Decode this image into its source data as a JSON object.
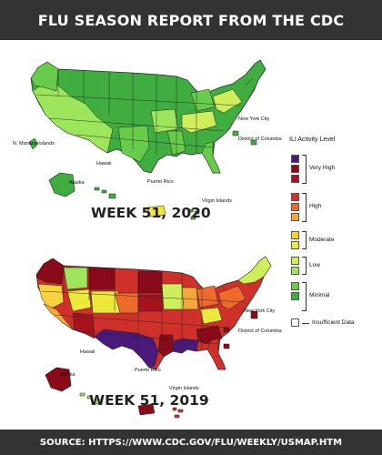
{
  "title": "FLU SEASON REPORT FROM THE CDC",
  "source": "SOURCE: HTTPS://WWW.CDC.GOV/FLU/WEEKLY/USMAP.HTM",
  "maps": [
    {
      "week_label": "WEEK 51, 2020",
      "labels": {
        "nyc": "New York City",
        "dc": "District of Columbia",
        "nmi": "N. Mariana Islands",
        "hawaii": "Hawaii",
        "alaska": "Alaska",
        "pr": "Puerto Rico",
        "vi": "Virgin Islands"
      }
    },
    {
      "week_label": "WEEK 51, 2019",
      "labels": {
        "nyc": "New York City",
        "dc": "District of Columbia",
        "hawaii": "Hawaii",
        "alaska": "Alaska",
        "pr": "Puerto Rico",
        "vi": "Virgin Islands"
      }
    }
  ],
  "legend": {
    "title": "ILI Activity Level",
    "groups": [
      "Very High",
      "High",
      "Moderate",
      "Low",
      "Minimal"
    ],
    "insufficient": "Insufficient Data",
    "colors": [
      "#4a1a7a",
      "#8b0a1a",
      "#a8141e",
      "#d0302a",
      "#ee6a2a",
      "#f4a83a",
      "#f6d23e",
      "#ece83c",
      "#cfee5c",
      "#9de65c",
      "#66cc4a",
      "#3fad3f",
      "#ffffff"
    ]
  }
}
